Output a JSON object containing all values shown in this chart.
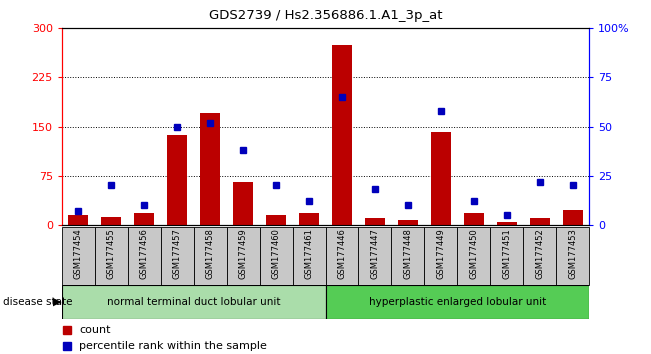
{
  "title": "GDS2739 / Hs2.356886.1.A1_3p_at",
  "samples": [
    "GSM177454",
    "GSM177455",
    "GSM177456",
    "GSM177457",
    "GSM177458",
    "GSM177459",
    "GSM177460",
    "GSM177461",
    "GSM177446",
    "GSM177447",
    "GSM177448",
    "GSM177449",
    "GSM177450",
    "GSM177451",
    "GSM177452",
    "GSM177453"
  ],
  "counts": [
    15,
    12,
    18,
    137,
    170,
    65,
    15,
    18,
    275,
    10,
    8,
    142,
    18,
    5,
    10,
    22
  ],
  "percentiles": [
    7,
    20,
    10,
    50,
    52,
    38,
    20,
    12,
    65,
    18,
    10,
    58,
    12,
    5,
    22,
    20
  ],
  "group1_label": "normal terminal duct lobular unit",
  "group2_label": "hyperplastic enlarged lobular unit",
  "group1_count": 8,
  "group2_count": 8,
  "ylim_left": [
    0,
    300
  ],
  "ylim_right": [
    0,
    100
  ],
  "yticks_left": [
    0,
    75,
    150,
    225,
    300
  ],
  "yticks_right": [
    0,
    25,
    50,
    75,
    100
  ],
  "ytick_labels_left": [
    "0",
    "75",
    "150",
    "225",
    "300"
  ],
  "ytick_labels_right": [
    "0",
    "25",
    "50",
    "75",
    "100%"
  ],
  "bar_color": "#bb0000",
  "dot_color": "#0000bb",
  "group1_bg": "#aaddaa",
  "group2_bg": "#55cc55",
  "sample_bg": "#c8c8c8",
  "disease_state_label": "disease state",
  "legend_count": "count",
  "legend_percentile": "percentile rank within the sample"
}
